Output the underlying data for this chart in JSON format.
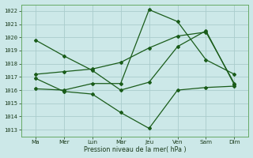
{
  "background_color": "#cce8e8",
  "grid_color": "#aacccc",
  "line_color": "#1a5c1a",
  "x_labels": [
    "Ma",
    "Mer",
    "Lun",
    "Mar",
    "Jeu",
    "Ven",
    "Sam",
    "Dim"
  ],
  "x_positions": [
    0,
    1,
    2,
    3,
    4,
    5,
    6,
    7
  ],
  "ylim": [
    1012.5,
    1022.5
  ],
  "yticks": [
    1013,
    1014,
    1015,
    1016,
    1017,
    1018,
    1019,
    1020,
    1021,
    1022
  ],
  "xlabel": "Pression niveau de la mer( hPa )",
  "line1_x": [
    0,
    1,
    2,
    3,
    4,
    5,
    6,
    7
  ],
  "line1_y": [
    1019.8,
    1018.6,
    1017.5,
    1016.0,
    1016.6,
    1019.3,
    1020.5,
    1016.4
  ],
  "line2_x": [
    0,
    1,
    2,
    3,
    4,
    5,
    6,
    7
  ],
  "line2_y": [
    1016.9,
    1015.9,
    1015.7,
    1014.3,
    1013.1,
    1016.0,
    1016.2,
    1016.3
  ],
  "line3_x": [
    0,
    1,
    2,
    3,
    4,
    5,
    6,
    7
  ],
  "line3_y": [
    1017.2,
    1017.4,
    1017.6,
    1018.1,
    1019.2,
    1020.1,
    1020.4,
    1016.5
  ],
  "line4_x": [
    0,
    1,
    2,
    3,
    4,
    5,
    6,
    7
  ],
  "line4_y": [
    1016.1,
    1016.0,
    1016.5,
    1016.5,
    1022.1,
    1021.2,
    1018.3,
    1017.2
  ]
}
